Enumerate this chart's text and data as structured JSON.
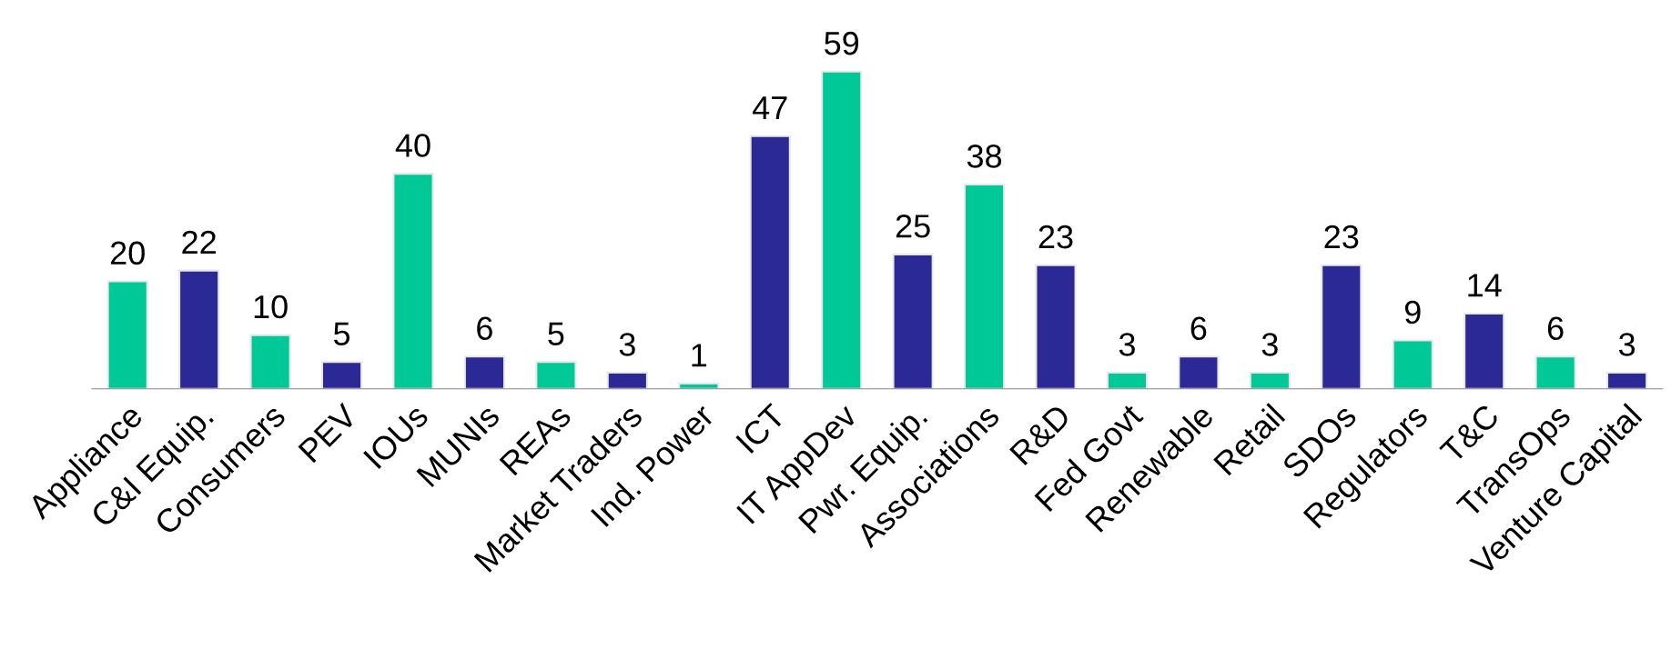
{
  "chart_data": {
    "type": "bar",
    "categories": [
      "Appliance",
      "C&I Equip.",
      "Consumers",
      "PEV",
      "IOUs",
      "MUNIs",
      "REAs",
      "Market Traders",
      "Ind. Power",
      "ICT",
      "IT AppDev",
      "Pwr. Equip.",
      "Associations",
      "R&D",
      "Fed Govt",
      "Renewable",
      "Retail",
      "SDOs",
      "Regulators",
      "T&C",
      "TransOps",
      "Venture Capital"
    ],
    "values": [
      20,
      22,
      10,
      5,
      40,
      6,
      5,
      3,
      1,
      47,
      59,
      25,
      38,
      23,
      3,
      6,
      3,
      23,
      9,
      14,
      6,
      3
    ],
    "colors": [
      "#00c896",
      "#2a2996",
      "#00c896",
      "#2a2996",
      "#00c896",
      "#2a2996",
      "#00c896",
      "#2a2996",
      "#00c896",
      "#2a2996",
      "#00c896",
      "#2a2996",
      "#00c896",
      "#2a2996",
      "#00c896",
      "#2a2996",
      "#00c896",
      "#2a2996",
      "#00c896",
      "#2a2996",
      "#00c896",
      "#2a2996"
    ],
    "data_labels": true,
    "grid": false,
    "legend": false
  }
}
